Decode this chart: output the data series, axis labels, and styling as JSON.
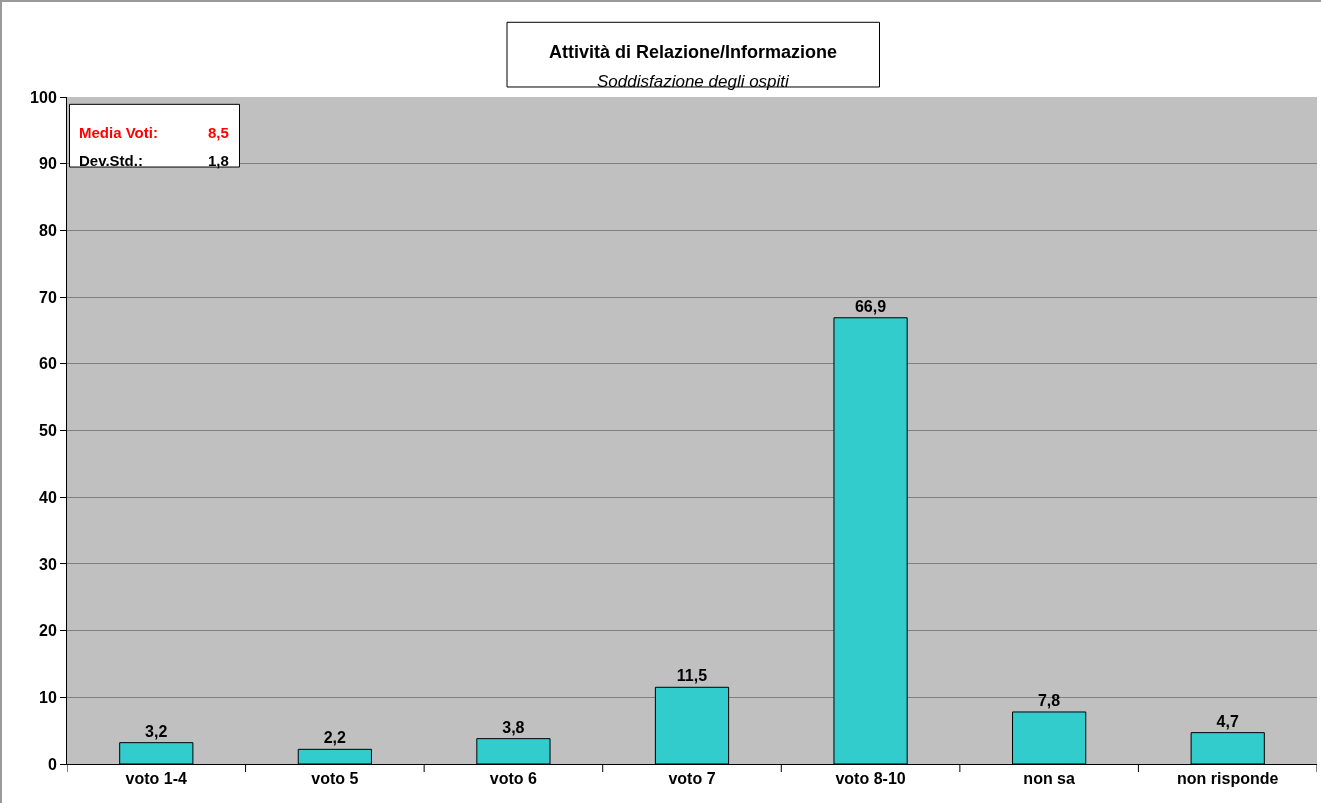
{
  "chart_data": {
    "type": "bar",
    "title": "Attività di Relazione/Informazione",
    "subtitle": "Soddisfazione degli ospiti",
    "categories": [
      "voto 1-4",
      "voto 5",
      "voto 6",
      "voto 7",
      "voto 8-10",
      "non sa",
      "non risponde"
    ],
    "values": [
      3.2,
      2.2,
      3.8,
      11.5,
      66.9,
      7.8,
      4.7
    ],
    "value_labels": [
      "3,2",
      "2,2",
      "3,8",
      "11,5",
      "66,9",
      "7,8",
      "4,7"
    ],
    "color": "#33cccc",
    "ylim": [
      0,
      100
    ],
    "yticks": [
      0,
      10,
      20,
      30,
      40,
      50,
      60,
      70,
      80,
      90,
      100
    ],
    "grid": "y",
    "annotations": [
      "Media Voti:",
      "8,5",
      "Dev.Std.:",
      "1,8"
    ]
  }
}
